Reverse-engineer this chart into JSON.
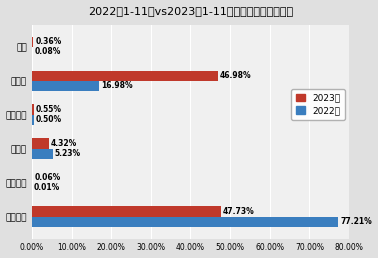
{
  "title": "2022年1-11月vs2023年1-11月牽引車燃料類型對比",
  "categories": [
    "柴油動力",
    "混合動力",
    "純電動",
    "燃料電池",
    "天然氣",
    "甲醇"
  ],
  "values_2023": [
    47.73,
    0.06,
    4.32,
    0.55,
    46.98,
    0.36
  ],
  "values_2022": [
    77.21,
    0.01,
    5.23,
    0.5,
    16.98,
    0.08
  ],
  "color_2023": "#c0392b",
  "color_2022": "#3a7ebf",
  "bg_color": "#e0e0e0",
  "plot_bg_color": "#f0f0f0",
  "xlim": [
    0,
    80
  ],
  "xticks": [
    0,
    10,
    20,
    30,
    40,
    50,
    60,
    70,
    80
  ],
  "bar_height": 0.3,
  "legend_labels": [
    "2023年",
    "2022年"
  ],
  "label_fontsize": 5.5,
  "title_fontsize": 8,
  "tick_fontsize": 5.5,
  "ytick_fontsize": 6.5,
  "legend_fontsize": 6.5
}
